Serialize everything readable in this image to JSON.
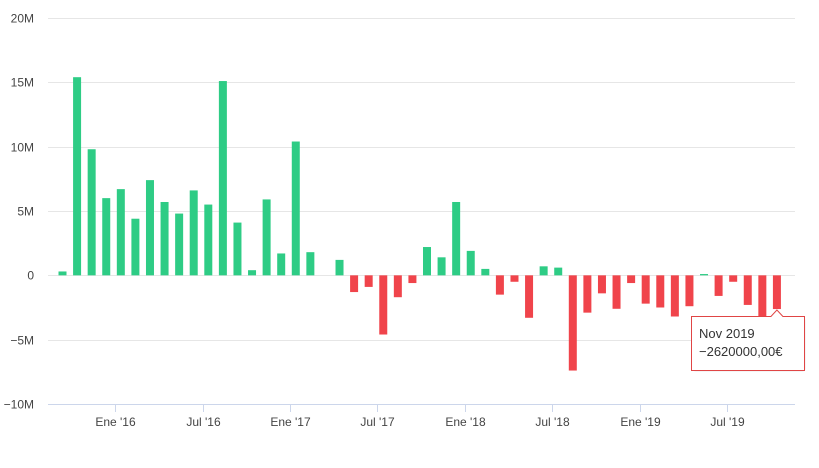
{
  "chart_data": {
    "type": "bar",
    "title": "",
    "xlabel": "",
    "ylabel": "",
    "ylim": [
      -10000000,
      20000000
    ],
    "yticks": [
      {
        "value": 20000000,
        "label": "20M"
      },
      {
        "value": 15000000,
        "label": "15M"
      },
      {
        "value": 10000000,
        "label": "10M"
      },
      {
        "value": 5000000,
        "label": "5M"
      },
      {
        "value": 0,
        "label": "0"
      },
      {
        "value": -5000000,
        "label": "−5M"
      },
      {
        "value": -10000000,
        "label": "−10M"
      }
    ],
    "xticks": [
      {
        "index": 3,
        "label": "Ene '16"
      },
      {
        "index": 9,
        "label": "Jul '16"
      },
      {
        "index": 15,
        "label": "Ene '17"
      },
      {
        "index": 21,
        "label": "Jul '17"
      },
      {
        "index": 27,
        "label": "Ene '18"
      },
      {
        "index": 33,
        "label": "Jul '18"
      },
      {
        "index": 39,
        "label": "Ene '19"
      },
      {
        "index": 45,
        "label": "Jul '19"
      }
    ],
    "grid": true,
    "legend": "none",
    "colors": {
      "positive": "#2ecc85",
      "negative": "#f0444b"
    },
    "values": [
      300000,
      15400000,
      9800000,
      6000000,
      6700000,
      4400000,
      7400000,
      5700000,
      4800000,
      6600000,
      5500000,
      15100000,
      4100000,
      400000,
      5900000,
      1700000,
      10400000,
      1800000,
      0,
      1200000,
      -1300000,
      -900000,
      -4600000,
      -1700000,
      -600000,
      2200000,
      1400000,
      5700000,
      1900000,
      500000,
      -1500000,
      -500000,
      -3300000,
      700000,
      600000,
      -7400000,
      -2900000,
      -1400000,
      -2600000,
      -600000,
      -2200000,
      -2500000,
      -3200000,
      -2400000,
      100000,
      -1600000,
      -500000,
      -2300000,
      -5500000,
      -2620000
    ]
  },
  "tooltip": {
    "title": "Nov 2019",
    "value": "−2620000,00€",
    "index": 49
  }
}
